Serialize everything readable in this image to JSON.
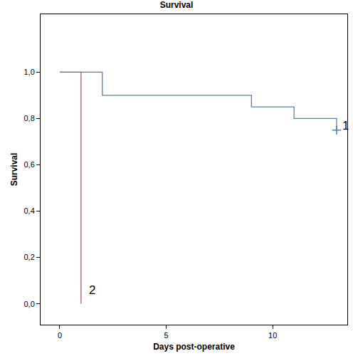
{
  "chart_data": {
    "type": "line",
    "title": "Survival",
    "x_label": "Days post-operative",
    "y_label": "Survival",
    "line_style": "step",
    "marker": "cross",
    "grid": false,
    "xlim": [
      -0.9,
      13.5
    ],
    "xticks": [
      0,
      5,
      10
    ],
    "ylim": [
      -0.09,
      1.25
    ],
    "yticks": [
      {
        "value": 0,
        "label": "0,0"
      },
      {
        "value": 0.2,
        "label": "0,2"
      },
      {
        "value": 0.4,
        "label": "0,4"
      },
      {
        "value": 0.6,
        "label": "0,6"
      },
      {
        "value": 0.8,
        "label": "0,8"
      },
      {
        "value": 1,
        "label": "1,0"
      }
    ],
    "series": [
      {
        "name": "1",
        "color": "#5a7ea8",
        "x": [
          0,
          2,
          9,
          11,
          13
        ],
        "values": [
          1,
          0.9,
          0.85,
          0.8,
          0.75
        ],
        "censored_x": [
          13
        ],
        "censored_values": [
          0.75
        ]
      },
      {
        "name": "2",
        "color": "#c8506a",
        "x": [
          0,
          1
        ],
        "values": [
          1,
          0
        ]
      }
    ],
    "annotations": [
      {
        "text": "1",
        "x": 13.2,
        "y": 0.77
      },
      {
        "text": "2",
        "x": 1.3,
        "y": 0.06
      }
    ]
  }
}
